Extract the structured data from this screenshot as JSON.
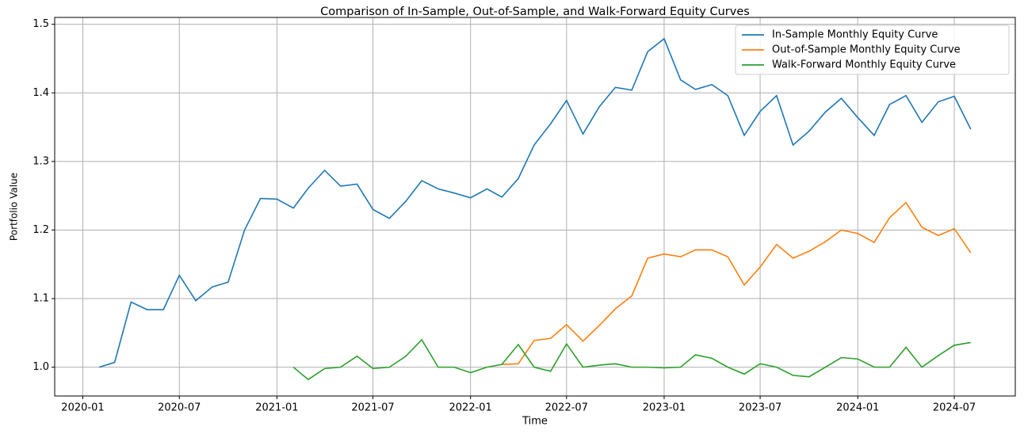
{
  "chart_data": {
    "type": "line",
    "title": "Comparison of In-Sample, Out-of-Sample, and Walk-Forward Equity Curves",
    "x_label": "Time",
    "y_label": "Portfolio Value",
    "x": [
      "2020-02",
      "2020-03",
      "2020-04",
      "2020-05",
      "2020-06",
      "2020-07",
      "2020-08",
      "2020-09",
      "2020-10",
      "2020-11",
      "2020-12",
      "2021-01",
      "2021-02",
      "2021-03",
      "2021-04",
      "2021-05",
      "2021-06",
      "2021-07",
      "2021-08",
      "2021-09",
      "2021-10",
      "2021-11",
      "2021-12",
      "2022-01",
      "2022-02",
      "2022-03",
      "2022-04",
      "2022-05",
      "2022-06",
      "2022-07",
      "2022-08",
      "2022-09",
      "2022-10",
      "2022-11",
      "2022-12",
      "2023-01",
      "2023-02",
      "2023-03",
      "2023-04",
      "2023-05",
      "2023-06",
      "2023-07",
      "2023-08",
      "2023-09",
      "2023-10",
      "2023-11",
      "2023-12",
      "2024-01",
      "2024-02",
      "2024-03",
      "2024-04",
      "2024-05",
      "2024-06",
      "2024-07",
      "2024-08"
    ],
    "series": [
      {
        "name": "In-Sample Monthly Equity Curve",
        "color": "#1f77b4",
        "values": [
          1.0,
          1.007,
          1.095,
          1.084,
          1.084,
          1.134,
          1.097,
          1.117,
          1.124,
          1.2,
          1.246,
          1.245,
          1.232,
          1.261,
          1.287,
          1.264,
          1.267,
          1.23,
          1.217,
          1.242,
          1.272,
          1.26,
          1.254,
          1.247,
          1.26,
          1.248,
          1.275,
          1.324,
          1.355,
          1.389,
          1.34,
          1.38,
          1.408,
          1.404,
          1.46,
          1.479,
          1.419,
          1.405,
          1.412,
          1.396,
          1.338,
          1.373,
          1.396,
          1.324,
          1.344,
          1.372,
          1.392,
          1.364,
          1.338,
          1.383,
          1.396,
          1.357,
          1.387,
          1.395,
          1.347
        ]
      },
      {
        "name": "Out-of-Sample Monthly Equity Curve",
        "color": "#ff7f0e",
        "values": [
          null,
          null,
          null,
          null,
          null,
          null,
          null,
          null,
          null,
          null,
          null,
          null,
          null,
          null,
          null,
          null,
          null,
          null,
          null,
          null,
          null,
          null,
          null,
          null,
          null,
          1.004,
          1.005,
          1.039,
          1.042,
          1.062,
          1.038,
          1.061,
          1.085,
          1.104,
          1.159,
          1.165,
          1.161,
          1.171,
          1.171,
          1.161,
          1.12,
          1.146,
          1.179,
          1.159,
          1.169,
          1.183,
          1.2,
          1.195,
          1.182,
          1.218,
          1.24,
          1.204,
          1.192,
          1.202,
          1.167
        ]
      },
      {
        "name": "Walk-Forward Monthly Equity Curve",
        "color": "#2ca02c",
        "values": [
          null,
          null,
          null,
          null,
          null,
          null,
          null,
          null,
          null,
          null,
          null,
          null,
          1.0,
          0.982,
          0.998,
          1.0,
          1.016,
          0.998,
          1.0,
          1.016,
          1.04,
          1.0,
          1.0,
          0.992,
          1.0,
          1.004,
          1.033,
          1.0,
          0.994,
          1.034,
          1.0,
          1.003,
          1.005,
          1.0,
          1.0,
          0.999,
          1.0,
          1.018,
          1.013,
          1.0,
          0.99,
          1.005,
          1.0,
          0.988,
          0.986,
          1.0,
          1.014,
          1.012,
          1.0,
          1.0,
          1.029,
          1.0,
          1.017,
          1.032,
          1.036
        ]
      }
    ],
    "xlim": [
      "2019-11-09",
      "2024-10-24"
    ],
    "xticks": [
      "2020-01",
      "2020-07",
      "2021-01",
      "2021-07",
      "2022-01",
      "2022-07",
      "2023-01",
      "2023-07",
      "2024-01",
      "2024-07"
    ],
    "ylim": [
      0.958,
      1.51
    ],
    "yticks": [
      {
        "value": 1,
        "label": "1.0"
      },
      1.1,
      1.2,
      1.3,
      1.4,
      1.5
    ],
    "grid": true,
    "legend": "upper right"
  }
}
